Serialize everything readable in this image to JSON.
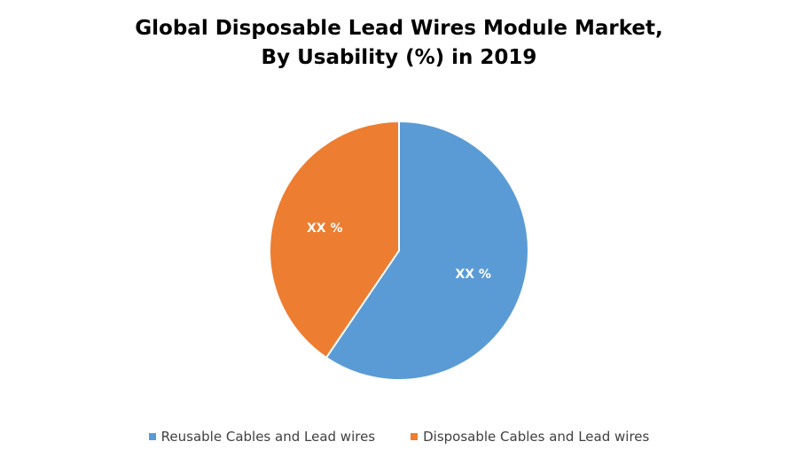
{
  "chart_data": {
    "type": "pie",
    "title": [
      "Global Disposable Lead Wires Module Market,",
      "By Usability (%) in 2019"
    ],
    "slices": [
      {
        "name": "Reusable Cables and Lead wires",
        "value": 59.5,
        "label": "XX %",
        "color": "#5B9BD5"
      },
      {
        "name": "Disposable Cables and Lead wires",
        "value": 40.5,
        "label": "XX %",
        "color": "#ED7D31"
      }
    ],
    "legend_position": "bottom"
  }
}
